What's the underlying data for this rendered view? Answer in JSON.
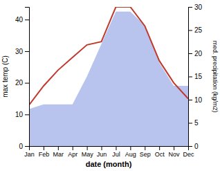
{
  "chart_data": {
    "type": "line",
    "xlabel": "date (month)",
    "ylabel": "max temp (C)",
    "y2label": "med. precipitation (kg/m2)",
    "categories": [
      "Jan",
      "Feb",
      "Mar",
      "Apr",
      "May",
      "Jun",
      "Jul",
      "Aug",
      "Sep",
      "Oct",
      "Nov",
      "Dec"
    ],
    "series": [
      {
        "type": "area",
        "axis": "y2",
        "color": "#b8c4ee",
        "values": [
          8,
          9,
          9,
          9,
          15,
          22,
          29,
          29,
          26,
          18,
          13,
          13
        ]
      },
      {
        "type": "line",
        "color": "#c0392b",
        "values": [
          13,
          19,
          24,
          28,
          32,
          33,
          44,
          44,
          38,
          27,
          20,
          15
        ]
      }
    ],
    "ylim": [
      0,
      44
    ],
    "yticks": [
      0,
      10,
      20,
      30,
      40
    ],
    "y2lim": [
      0,
      30
    ],
    "y2ticks": [
      0,
      5,
      10,
      15,
      20,
      25,
      30
    ],
    "grid": false
  }
}
